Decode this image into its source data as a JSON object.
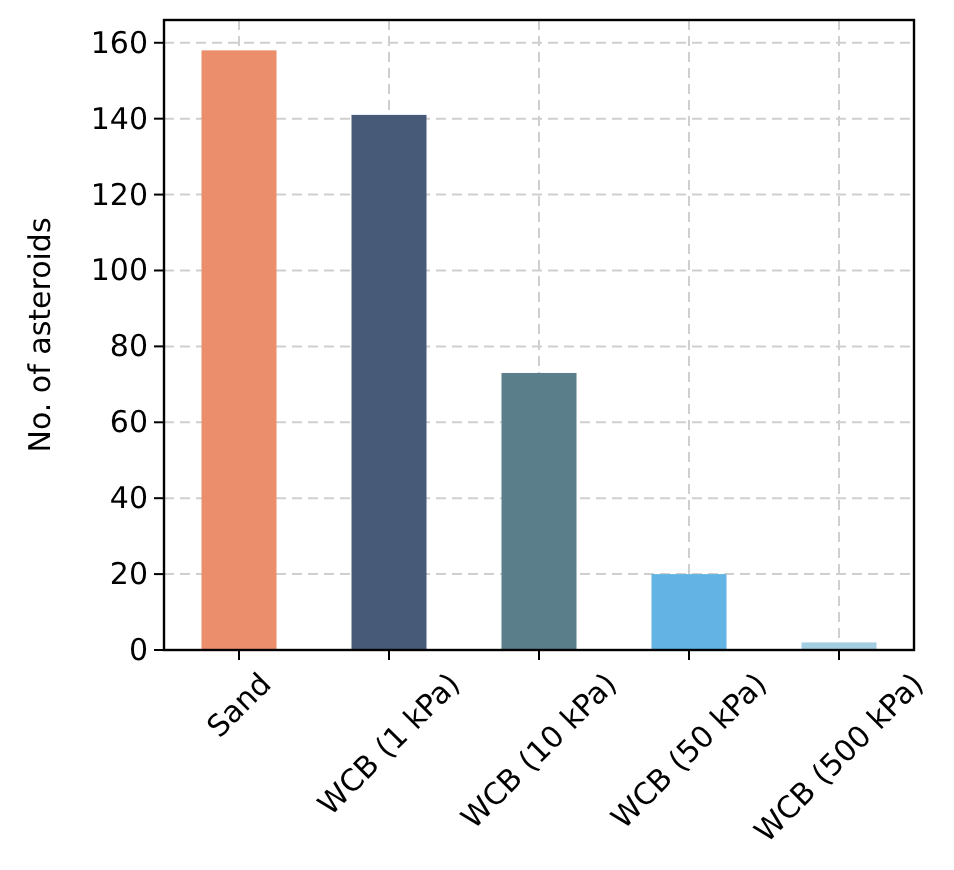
{
  "chart_data": {
    "type": "bar",
    "ylabel": "No. of asteroids",
    "categories": [
      "Sand",
      "WCB (1 kPa)",
      "WCB (10 kPa)",
      "WCB (50 kPa)",
      "WCB (500 kPa)"
    ],
    "values": [
      158,
      141,
      73,
      20,
      2
    ],
    "colors": [
      "#ea8e6c",
      "#475a78",
      "#5b7e8b",
      "#63b4e4",
      "#a3cde0"
    ],
    "ylim": [
      0,
      166
    ],
    "yticks": [
      0,
      20,
      40,
      60,
      80,
      100,
      120,
      140,
      160
    ],
    "grid": true
  }
}
